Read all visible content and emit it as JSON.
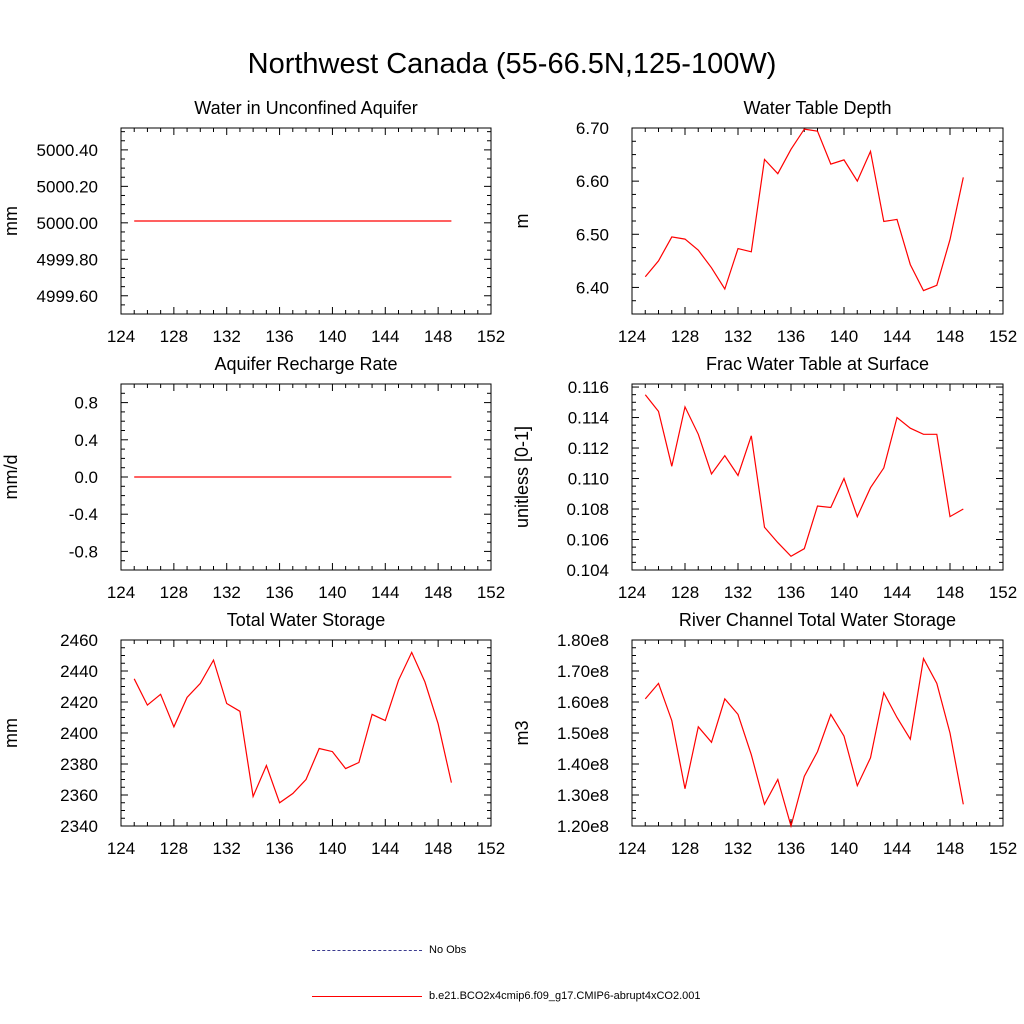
{
  "title": "Northwest Canada (55-66.5N,125-100W)",
  "legend": [
    {
      "label": "No Obs",
      "color": "#3b3b8f",
      "dash": true
    },
    {
      "label": "b.e21.BCO2x4cmip6.f09_g17.CMIP6-abrupt4xCO2.001",
      "color": "#ff0000",
      "dash": false
    }
  ],
  "series_color": "#ff0000",
  "chart_data": [
    {
      "type": "line",
      "title": "Water in Unconfined Aquifer",
      "ylabel": "mm",
      "xlim": [
        124,
        152
      ],
      "ylim": [
        4999.5,
        5000.52
      ],
      "xticks": [
        "124",
        "128",
        "132",
        "136",
        "140",
        "144",
        "148",
        "152"
      ],
      "yticks": [
        "4999.60",
        "4999.80",
        "5000.00",
        "5000.20",
        "5000.40"
      ],
      "x": [
        125,
        126,
        127,
        128,
        129,
        130,
        131,
        132,
        133,
        134,
        135,
        136,
        137,
        138,
        139,
        140,
        141,
        142,
        143,
        144,
        145,
        146,
        147,
        148,
        149
      ],
      "values": [
        5000.01,
        5000.01,
        5000.01,
        5000.01,
        5000.01,
        5000.01,
        5000.01,
        5000.01,
        5000.01,
        5000.01,
        5000.01,
        5000.01,
        5000.01,
        5000.01,
        5000.01,
        5000.01,
        5000.01,
        5000.01,
        5000.01,
        5000.01,
        5000.01,
        5000.01,
        5000.01,
        5000.01,
        5000.01
      ]
    },
    {
      "type": "line",
      "title": "Water Table Depth",
      "ylabel": "m",
      "xlim": [
        124,
        152
      ],
      "ylim": [
        6.35,
        6.7
      ],
      "xticks": [
        "124",
        "128",
        "132",
        "136",
        "140",
        "144",
        "148",
        "152"
      ],
      "yticks": [
        "6.40",
        "6.50",
        "6.60",
        "6.70"
      ],
      "x": [
        125,
        126,
        127,
        128,
        129,
        130,
        131,
        132,
        133,
        134,
        135,
        136,
        137,
        138,
        139,
        140,
        141,
        142,
        143,
        144,
        145,
        146,
        147,
        148,
        149
      ],
      "values": [
        6.42,
        6.45,
        6.495,
        6.491,
        6.47,
        6.437,
        6.397,
        6.473,
        6.467,
        6.641,
        6.614,
        6.66,
        6.698,
        6.694,
        6.632,
        6.64,
        6.6,
        6.656,
        6.524,
        6.528,
        6.443,
        6.394,
        6.404,
        6.49,
        6.607
      ]
    },
    {
      "type": "line",
      "title": "Aquifer Recharge Rate",
      "ylabel": "mm/d",
      "xlim": [
        124,
        152
      ],
      "ylim": [
        -1.0,
        1.0
      ],
      "xticks": [
        "124",
        "128",
        "132",
        "136",
        "140",
        "144",
        "148",
        "152"
      ],
      "yticks": [
        "-0.8",
        "-0.4",
        "0.0",
        "0.4",
        "0.8"
      ],
      "x": [
        125,
        126,
        127,
        128,
        129,
        130,
        131,
        132,
        133,
        134,
        135,
        136,
        137,
        138,
        139,
        140,
        141,
        142,
        143,
        144,
        145,
        146,
        147,
        148,
        149
      ],
      "values": [
        0,
        0,
        0,
        0,
        0,
        0,
        0,
        0,
        0,
        0,
        0,
        0,
        0,
        0,
        0,
        0,
        0,
        0,
        0,
        0,
        0,
        0,
        0,
        0,
        0
      ]
    },
    {
      "type": "line",
      "title": "Frac Water Table at Surface",
      "ylabel": "unitless [0-1]",
      "xlim": [
        124,
        152
      ],
      "ylim": [
        0.104,
        0.1162
      ],
      "xticks": [
        "124",
        "128",
        "132",
        "136",
        "140",
        "144",
        "148",
        "152"
      ],
      "yticks": [
        "0.104",
        "0.106",
        "0.108",
        "0.110",
        "0.112",
        "0.114",
        "0.116"
      ],
      "x": [
        125,
        126,
        127,
        128,
        129,
        130,
        131,
        132,
        133,
        134,
        135,
        136,
        137,
        138,
        139,
        140,
        141,
        142,
        143,
        144,
        145,
        146,
        147,
        148,
        149
      ],
      "values": [
        0.1155,
        0.1144,
        0.1108,
        0.1147,
        0.1129,
        0.1103,
        0.1115,
        0.1102,
        0.1128,
        0.1068,
        0.1058,
        0.1049,
        0.1054,
        0.1082,
        0.1081,
        0.11,
        0.1075,
        0.1094,
        0.1107,
        0.114,
        0.1133,
        0.1129,
        0.1129,
        0.1075,
        0.108
      ]
    },
    {
      "type": "line",
      "title": "Total Water Storage",
      "ylabel": "mm",
      "xlim": [
        124,
        152
      ],
      "ylim": [
        2340,
        2460
      ],
      "xticks": [
        "124",
        "128",
        "132",
        "136",
        "140",
        "144",
        "148",
        "152"
      ],
      "yticks": [
        "2340",
        "2360",
        "2380",
        "2400",
        "2420",
        "2440",
        "2460"
      ],
      "x": [
        125,
        126,
        127,
        128,
        129,
        130,
        131,
        132,
        133,
        134,
        135,
        136,
        137,
        138,
        139,
        140,
        141,
        142,
        143,
        144,
        145,
        146,
        147,
        148,
        149
      ],
      "values": [
        2435,
        2418,
        2425,
        2404,
        2423,
        2432,
        2447,
        2419,
        2414,
        2359,
        2379,
        2355,
        2361,
        2370,
        2390,
        2388,
        2377,
        2381,
        2412,
        2408,
        2434,
        2452,
        2433,
        2406,
        2368
      ]
    },
    {
      "type": "line",
      "title": "River Channel Total Water Storage",
      "ylabel": "m3",
      "xlim": [
        124,
        152
      ],
      "ylim": [
        120000000.0,
        180000000.0
      ],
      "xticks": [
        "124",
        "128",
        "132",
        "136",
        "140",
        "144",
        "148",
        "152"
      ],
      "yticks": [
        "1.20e8",
        "1.30e8",
        "1.40e8",
        "1.50e8",
        "1.60e8",
        "1.70e8",
        "1.80e8"
      ],
      "x": [
        125,
        126,
        127,
        128,
        129,
        130,
        131,
        132,
        133,
        134,
        135,
        136,
        137,
        138,
        139,
        140,
        141,
        142,
        143,
        144,
        145,
        146,
        147,
        148,
        149
      ],
      "values": [
        161000000.0,
        166000000.0,
        154000000.0,
        132000000.0,
        152000000.0,
        147000000.0,
        161000000.0,
        156000000.0,
        143000000.0,
        127000000.0,
        135000000.0,
        120000000.0,
        136000000.0,
        144000000.0,
        156000000.0,
        149000000.0,
        133000000.0,
        142000000.0,
        163000000.0,
        155000000.0,
        148000000.0,
        174000000.0,
        166000000.0,
        150000000.0,
        127000000.0
      ]
    }
  ]
}
